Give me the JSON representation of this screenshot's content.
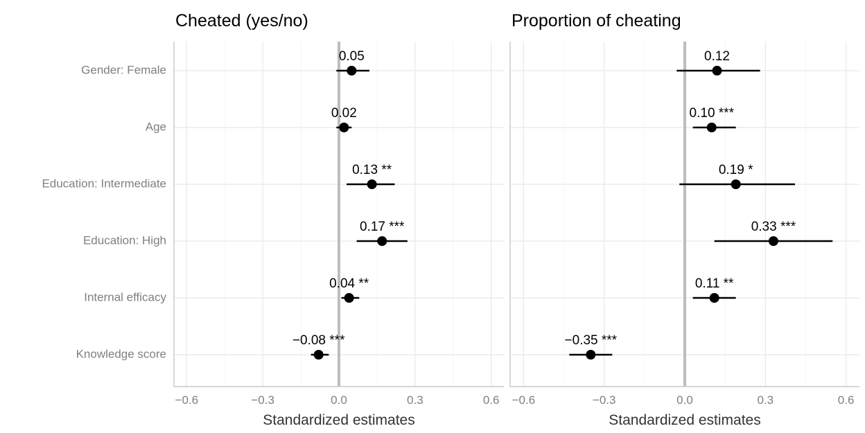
{
  "chart_data": [
    {
      "type": "scatter",
      "subtype": "forest-plot",
      "title": "Cheated (yes/no)",
      "xlabel": "Standardized estimates",
      "xlim": [
        -0.65,
        0.65
      ],
      "x_ticks": [
        -0.6,
        -0.3,
        0.0,
        0.3,
        0.6
      ],
      "x_tick_labels": [
        "−0.6",
        "−0.3",
        "0.0",
        "0.3",
        "0.6"
      ],
      "categories": [
        "Gender: Female",
        "Age",
        "Education: Intermediate",
        "Education: High",
        "Internal efficacy",
        "Knowledge score"
      ],
      "estimates": [
        0.05,
        0.02,
        0.13,
        0.17,
        0.04,
        -0.08
      ],
      "ci_low": [
        -0.01,
        -0.01,
        0.03,
        0.07,
        0.01,
        -0.11
      ],
      "ci_high": [
        0.12,
        0.05,
        0.22,
        0.27,
        0.08,
        -0.04
      ],
      "labels": [
        "0.05",
        "0.02",
        "0.13 **",
        "0.17 ***",
        "0.04 **",
        "−0.08 ***"
      ]
    },
    {
      "type": "scatter",
      "subtype": "forest-plot",
      "title": "Proportion of cheating",
      "xlabel": "Standardized estimates",
      "xlim": [
        -0.65,
        0.65
      ],
      "x_ticks": [
        -0.6,
        -0.3,
        0.0,
        0.3,
        0.6
      ],
      "x_tick_labels": [
        "−0.6",
        "−0.3",
        "0.0",
        "0.3",
        "0.6"
      ],
      "categories": [
        "Gender: Female",
        "Age",
        "Education: Intermediate",
        "Education: High",
        "Internal efficacy",
        "Knowledge score"
      ],
      "estimates": [
        0.12,
        0.1,
        0.19,
        0.33,
        0.11,
        -0.35
      ],
      "ci_low": [
        -0.03,
        0.03,
        -0.02,
        0.11,
        0.03,
        -0.43
      ],
      "ci_high": [
        0.28,
        0.19,
        0.41,
        0.55,
        0.19,
        -0.27
      ],
      "labels": [
        "0.12",
        "0.10 ***",
        "0.19 *",
        "0.33 ***",
        "0.11 **",
        "−0.35 ***"
      ]
    }
  ]
}
